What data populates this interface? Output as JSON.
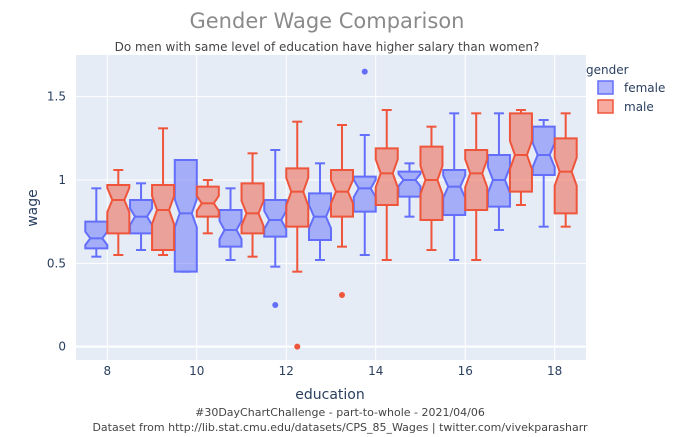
{
  "chart_data": {
    "type": "box",
    "title": "Gender Wage Comparison",
    "subtitle": "Do men with same level of education have higher salary than women?",
    "xlabel": "education",
    "ylabel": "wage",
    "x_ticks": [
      "8",
      "10",
      "12",
      "14",
      "16",
      "18"
    ],
    "y_ticks": [
      "0",
      "0.5",
      "1",
      "1.5"
    ],
    "ylim": [
      -0.08,
      1.75
    ],
    "xlim": [
      7.3,
      18.7
    ],
    "legend_title": "gender",
    "legend_position": "top-right",
    "notched": true,
    "series": [
      {
        "name": "female",
        "color": "#636efa",
        "fill": "rgba(99,110,250,0.5)",
        "boxes": [
          {
            "education": 8,
            "min": 0.54,
            "q1": 0.59,
            "median": 0.65,
            "q3": 0.75,
            "max": 0.95,
            "outliers": []
          },
          {
            "education": 9,
            "min": 0.58,
            "q1": 0.68,
            "median": 0.78,
            "q3": 0.88,
            "max": 0.98,
            "outliers": []
          },
          {
            "education": 10,
            "min": 0.45,
            "q1": 0.45,
            "median": 0.8,
            "q3": 1.12,
            "max": 1.12,
            "outliers": []
          },
          {
            "education": 11,
            "min": 0.52,
            "q1": 0.6,
            "median": 0.7,
            "q3": 0.82,
            "max": 0.95,
            "outliers": []
          },
          {
            "education": 12,
            "min": 0.48,
            "q1": 0.66,
            "median": 0.76,
            "q3": 0.88,
            "max": 1.18,
            "outliers": [
              0.25
            ]
          },
          {
            "education": 13,
            "min": 0.52,
            "q1": 0.64,
            "median": 0.78,
            "q3": 0.92,
            "max": 1.1,
            "outliers": []
          },
          {
            "education": 14,
            "min": 0.55,
            "q1": 0.81,
            "median": 0.95,
            "q3": 1.02,
            "max": 1.27,
            "outliers": [
              1.65
            ]
          },
          {
            "education": 15,
            "min": 0.78,
            "q1": 0.9,
            "median": 1.0,
            "q3": 1.05,
            "max": 1.1,
            "outliers": []
          },
          {
            "education": 16,
            "min": 0.52,
            "q1": 0.79,
            "median": 0.96,
            "q3": 1.06,
            "max": 1.4,
            "outliers": []
          },
          {
            "education": 17,
            "min": 0.7,
            "q1": 0.84,
            "median": 1.0,
            "q3": 1.15,
            "max": 1.4,
            "outliers": []
          },
          {
            "education": 18,
            "min": 0.72,
            "q1": 1.03,
            "median": 1.15,
            "q3": 1.32,
            "max": 1.36,
            "outliers": []
          }
        ]
      },
      {
        "name": "male",
        "color": "#ef553b",
        "fill": "rgba(239,85,59,0.5)",
        "boxes": [
          {
            "education": 8,
            "min": 0.55,
            "q1": 0.68,
            "median": 0.88,
            "q3": 0.97,
            "max": 1.06,
            "outliers": []
          },
          {
            "education": 9,
            "min": 0.55,
            "q1": 0.58,
            "median": 0.82,
            "q3": 0.97,
            "max": 1.31,
            "outliers": []
          },
          {
            "education": 10,
            "min": 0.68,
            "q1": 0.78,
            "median": 0.86,
            "q3": 0.96,
            "max": 1.0,
            "outliers": []
          },
          {
            "education": 11,
            "min": 0.54,
            "q1": 0.68,
            "median": 0.8,
            "q3": 0.98,
            "max": 1.16,
            "outliers": []
          },
          {
            "education": 12,
            "min": 0.45,
            "q1": 0.72,
            "median": 0.93,
            "q3": 1.07,
            "max": 1.35,
            "outliers": [
              0.0
            ]
          },
          {
            "education": 13,
            "min": 0.6,
            "q1": 0.78,
            "median": 0.93,
            "q3": 1.06,
            "max": 1.33,
            "outliers": [
              0.31
            ]
          },
          {
            "education": 14,
            "min": 0.52,
            "q1": 0.85,
            "median": 1.04,
            "q3": 1.19,
            "max": 1.42,
            "outliers": []
          },
          {
            "education": 15,
            "min": 0.58,
            "q1": 0.76,
            "median": 1.0,
            "q3": 1.2,
            "max": 1.32,
            "outliers": []
          },
          {
            "education": 16,
            "min": 0.52,
            "q1": 0.82,
            "median": 1.04,
            "q3": 1.18,
            "max": 1.4,
            "outliers": []
          },
          {
            "education": 17,
            "min": 0.85,
            "q1": 0.93,
            "median": 1.15,
            "q3": 1.4,
            "max": 1.42,
            "outliers": []
          },
          {
            "education": 18,
            "min": 0.72,
            "q1": 0.8,
            "median": 1.05,
            "q3": 1.25,
            "max": 1.4,
            "outliers": []
          }
        ]
      }
    ],
    "captions": [
      "#30DayChartChallenge - part-to-whole - 2021/04/06",
      "Dataset from http://lib.stat.cmu.edu/datasets/CPS_85_Wages | twitter.com/vivekparasharr"
    ]
  }
}
